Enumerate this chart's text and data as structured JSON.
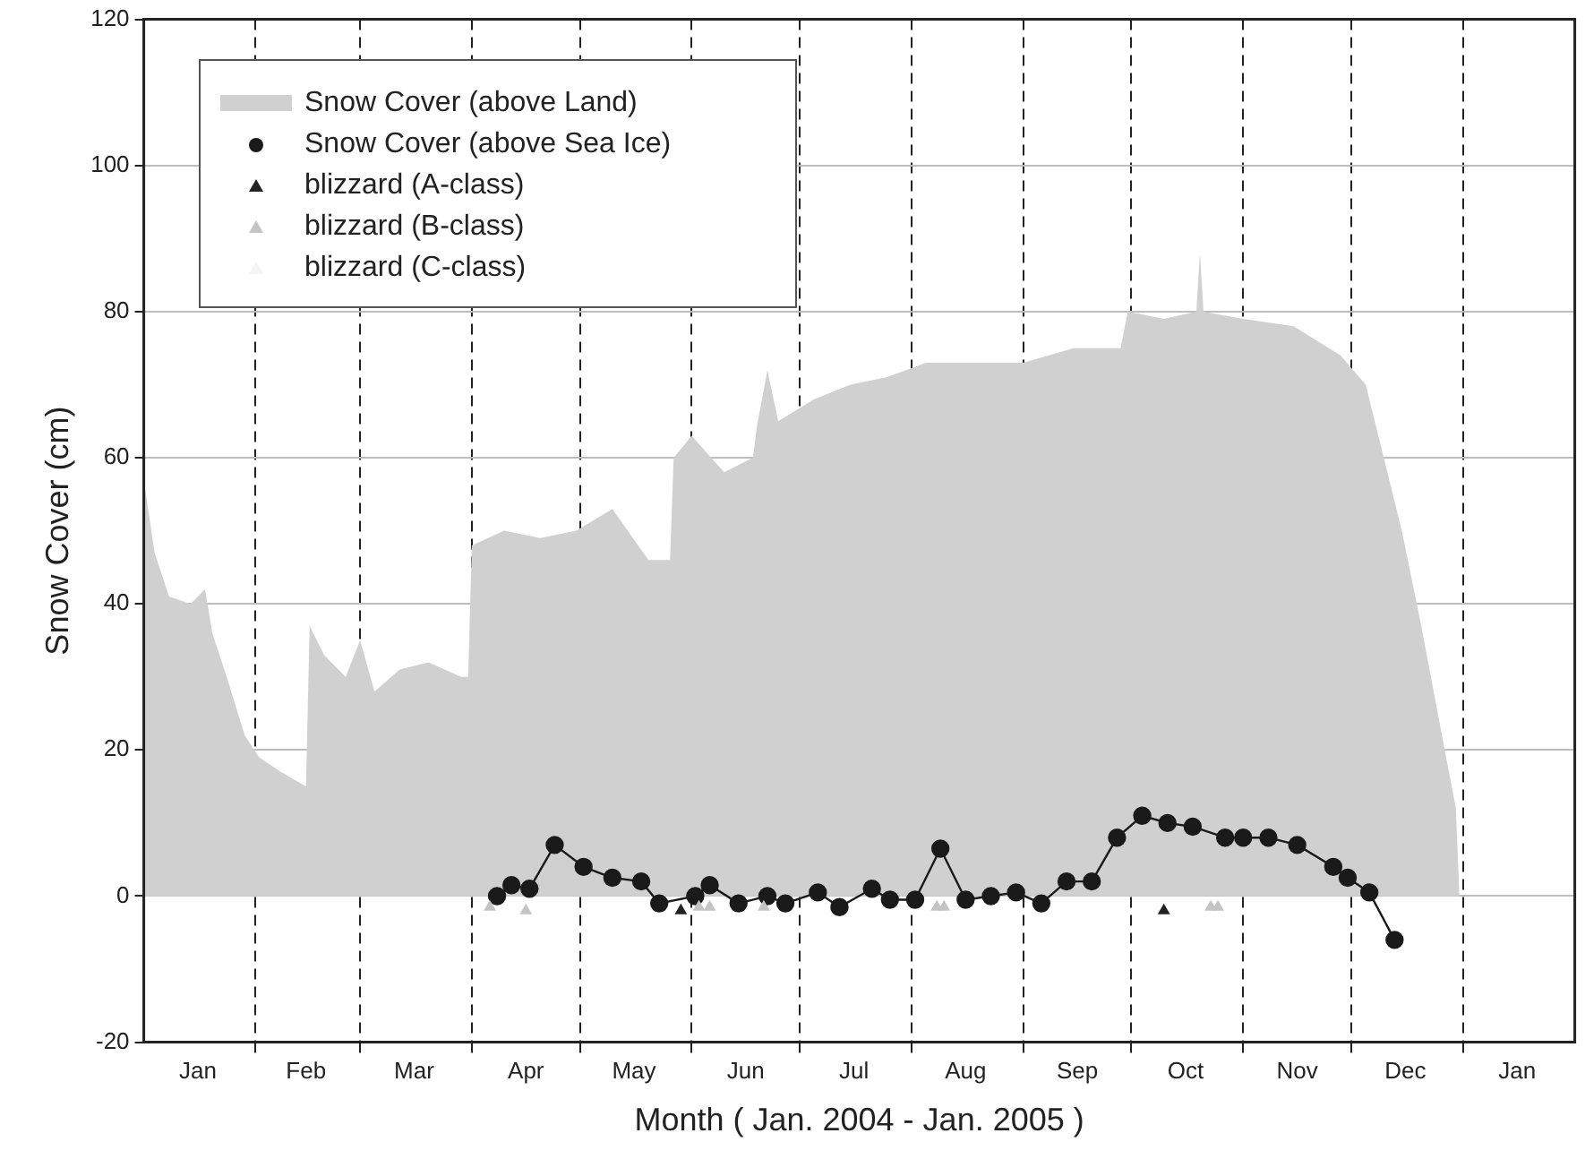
{
  "chart_data": {
    "type": "area",
    "xlabel": "Month ( Jan. 2004 - Jan. 2005 )",
    "ylabel": "Snow Cover (cm)",
    "xlim": [
      "2004-01-01",
      "2005-02-01"
    ],
    "xticks": [
      {
        "value": "2004-01-16",
        "label": "Jan"
      },
      {
        "value": "2004-02-01",
        "label": null
      },
      {
        "value": "2004-02-15",
        "label": "Feb"
      },
      {
        "value": "2004-03-01",
        "label": null
      },
      {
        "value": "2004-03-16",
        "label": "Mar"
      },
      {
        "value": "2004-04-01",
        "label": null
      },
      {
        "value": "2004-04-16",
        "label": "Apr"
      },
      {
        "value": "2004-05-01",
        "label": null
      },
      {
        "value": "2004-05-16",
        "label": "May"
      },
      {
        "value": "2004-06-01",
        "label": null
      },
      {
        "value": "2004-06-16",
        "label": "Jun"
      },
      {
        "value": "2004-07-01",
        "label": null
      },
      {
        "value": "2004-07-16",
        "label": "Jul"
      },
      {
        "value": "2004-08-01",
        "label": null
      },
      {
        "value": "2004-08-16",
        "label": "Aug"
      },
      {
        "value": "2004-09-01",
        "label": null
      },
      {
        "value": "2004-09-16",
        "label": "Sep"
      },
      {
        "value": "2004-10-01",
        "label": null
      },
      {
        "value": "2004-10-16",
        "label": "Oct"
      },
      {
        "value": "2004-11-01",
        "label": null
      },
      {
        "value": "2004-11-16",
        "label": "Nov"
      },
      {
        "value": "2004-12-01",
        "label": null
      },
      {
        "value": "2004-12-16",
        "label": "Dec"
      },
      {
        "value": "2005-01-01",
        "label": null
      },
      {
        "value": "2005-01-16",
        "label": "Jan"
      }
    ],
    "ylim": [
      -20,
      120
    ],
    "yticks": [
      -20,
      0,
      20,
      40,
      60,
      80,
      100,
      120
    ],
    "grid": true,
    "legend": "top left",
    "series": [
      {
        "name": "Snow Cover (above Land)",
        "color": "#d0d0d0",
        "x": [
          "2004-01-01",
          "2004-01-04",
          "2004-01-08",
          "2004-01-14",
          "2004-01-18",
          "2004-01-20",
          "2004-01-24",
          "2004-01-29",
          "2004-02-02",
          "2004-02-08",
          "2004-02-15",
          "2004-02-16",
          "2004-02-20",
          "2004-02-26",
          "2004-03-01",
          "2004-03-05",
          "2004-03-12",
          "2004-03-20",
          "2004-03-29",
          "2004-03-31",
          "2004-04-01",
          "2004-04-10",
          "2004-04-20",
          "2004-04-30",
          "2004-05-10",
          "2004-05-20",
          "2004-05-26",
          "2004-05-27",
          "2004-06-01",
          "2004-06-10",
          "2004-06-18",
          "2004-06-19",
          "2004-06-22",
          "2004-06-25",
          "2004-07-05",
          "2004-07-15",
          "2004-07-25",
          "2004-08-05",
          "2004-08-20",
          "2004-09-01",
          "2004-09-15",
          "2004-09-28",
          "2004-09-30",
          "2004-10-10",
          "2004-10-19",
          "2004-10-20",
          "2004-10-21",
          "2004-11-01",
          "2004-11-15",
          "2004-11-28",
          "2004-12-05",
          "2004-12-10",
          "2004-12-15",
          "2004-12-20",
          "2004-12-25",
          "2004-12-30",
          "2004-12-31"
        ],
        "values": [
          57,
          47,
          41,
          40,
          42,
          36,
          30,
          22,
          19,
          17,
          15,
          37,
          33,
          30,
          35,
          28,
          31,
          32,
          30,
          30,
          48,
          50,
          49,
          50,
          53,
          46,
          46,
          60,
          63,
          58,
          60,
          64,
          72,
          65,
          68,
          70,
          71,
          73,
          73,
          73,
          75,
          75,
          80,
          79,
          80,
          88,
          80,
          79,
          78,
          74,
          70,
          60,
          50,
          38,
          25,
          12,
          0
        ]
      },
      {
        "name": "Snow Cover (above Sea Ice)",
        "type": "line",
        "marker": "circle",
        "color": "#1a1a1a",
        "x": [
          "2004-04-08",
          "2004-04-12",
          "2004-04-17",
          "2004-04-24",
          "2004-05-02",
          "2004-05-10",
          "2004-05-18",
          "2004-05-23",
          "2004-06-02",
          "2004-06-06",
          "2004-06-14",
          "2004-06-22",
          "2004-06-27",
          "2004-07-06",
          "2004-07-12",
          "2004-07-21",
          "2004-07-26",
          "2004-08-02",
          "2004-08-09",
          "2004-08-16",
          "2004-08-23",
          "2004-08-30",
          "2004-09-06",
          "2004-09-13",
          "2004-09-20",
          "2004-09-27",
          "2004-10-04",
          "2004-10-11",
          "2004-10-18",
          "2004-10-27",
          "2004-11-01",
          "2004-11-08",
          "2004-11-16",
          "2004-11-26",
          "2004-11-30",
          "2004-12-06",
          "2004-12-13"
        ],
        "values": [
          0,
          1.5,
          1,
          7,
          4,
          2.5,
          2,
          -1,
          0,
          1.5,
          -1,
          0,
          -1,
          0.5,
          -1.5,
          1,
          -0.5,
          -0.5,
          6.5,
          -0.5,
          0,
          0.5,
          -1,
          2,
          2,
          8,
          11,
          10,
          9.5,
          8,
          8,
          8,
          7,
          4,
          2.5,
          0.5,
          -6
        ]
      },
      {
        "name": "blizzard (A-class)",
        "type": "scatter",
        "marker": "triangle",
        "color": "#222222",
        "x": [
          "2004-05-29",
          "2004-10-10"
        ],
        "values": [
          -2,
          -2
        ]
      },
      {
        "name": "blizzard (B-class)",
        "type": "scatter",
        "marker": "triangle",
        "color": "#c4c4c4",
        "x": [
          "2004-04-06",
          "2004-04-16",
          "2004-06-03",
          "2004-06-06",
          "2004-06-21",
          "2004-08-08",
          "2004-08-10",
          "2004-10-23",
          "2004-10-25"
        ],
        "values": [
          -1.5,
          -2,
          -1.5,
          -1.5,
          -1.5,
          -1.5,
          -1.5,
          -1.5,
          -1.5
        ]
      },
      {
        "name": "blizzard (C-class)",
        "type": "scatter",
        "marker": "triangle",
        "color": "#f4f4f4"
      }
    ]
  }
}
